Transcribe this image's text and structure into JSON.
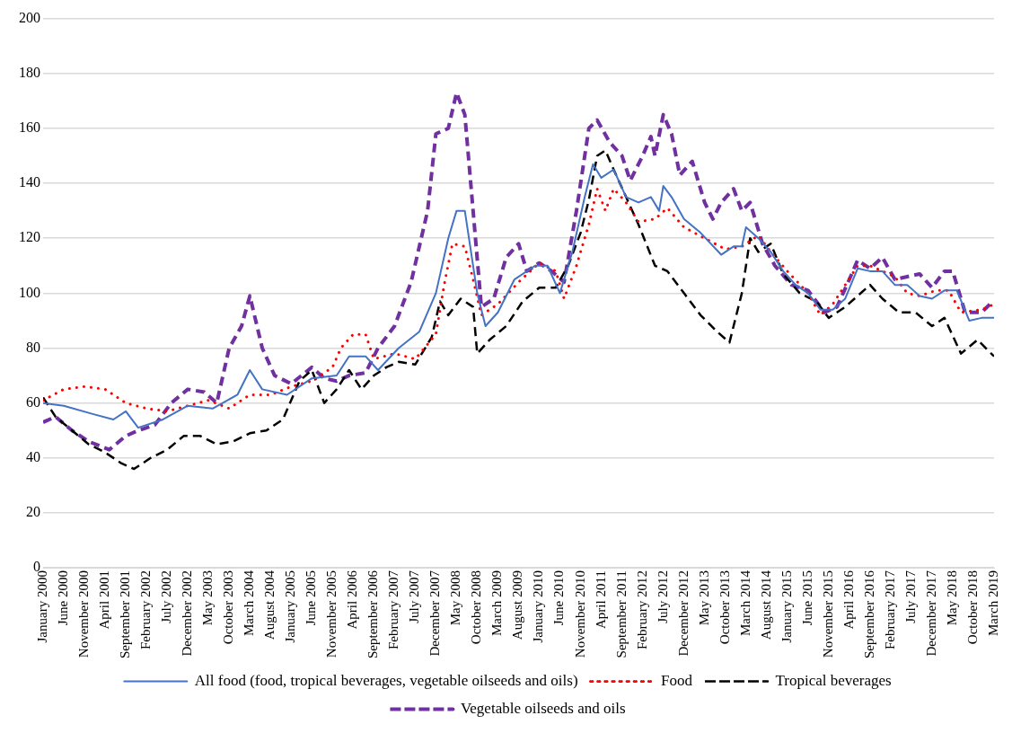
{
  "chart_data": {
    "type": "line",
    "xlim": [
      "2000-01",
      "2019-03"
    ],
    "ylim": [
      0,
      200
    ],
    "yticks": [
      0,
      20,
      40,
      60,
      80,
      100,
      120,
      140,
      160,
      180,
      200
    ],
    "grid": "y",
    "legend": "bottom",
    "marker": "none",
    "xticks": [
      {
        "value": "2000-01",
        "label": "January 2000"
      },
      {
        "value": "2000-06",
        "label": "June 2000"
      },
      {
        "value": "2000-11",
        "label": "November 2000"
      },
      {
        "value": "2001-04",
        "label": "April 2001"
      },
      {
        "value": "2001-09",
        "label": "September 2001"
      },
      {
        "value": "2002-02",
        "label": "February 2002"
      },
      {
        "value": "2002-07",
        "label": "July 2002"
      },
      {
        "value": "2002-12",
        "label": "December 2002"
      },
      {
        "value": "2003-05",
        "label": "May 2003"
      },
      {
        "value": "2003-10",
        "label": "October 2003"
      },
      {
        "value": "2004-03",
        "label": "March 2004"
      },
      {
        "value": "2004-08",
        "label": "August 2004"
      },
      {
        "value": "2005-01",
        "label": "January 2005"
      },
      {
        "value": "2005-06",
        "label": "June 2005"
      },
      {
        "value": "2005-11",
        "label": "November 2005"
      },
      {
        "value": "2006-04",
        "label": "April 2006"
      },
      {
        "value": "2006-09",
        "label": "September 2006"
      },
      {
        "value": "2007-02",
        "label": "February 2007"
      },
      {
        "value": "2007-07",
        "label": "July 2007"
      },
      {
        "value": "2007-12",
        "label": "December 2007"
      },
      {
        "value": "2008-05",
        "label": "May 2008"
      },
      {
        "value": "2008-10",
        "label": "October 2008"
      },
      {
        "value": "2009-03",
        "label": "March 2009"
      },
      {
        "value": "2009-08",
        "label": "August 2009"
      },
      {
        "value": "2010-01",
        "label": "January 2010"
      },
      {
        "value": "2010-06",
        "label": "June 2010"
      },
      {
        "value": "2010-11",
        "label": "November 2010"
      },
      {
        "value": "2011-04",
        "label": "April 2011"
      },
      {
        "value": "2011-09",
        "label": "September 2011"
      },
      {
        "value": "2012-02",
        "label": "February 2012"
      },
      {
        "value": "2012-07",
        "label": "July 2012"
      },
      {
        "value": "2012-12",
        "label": "December 2012"
      },
      {
        "value": "2013-05",
        "label": "May 2013"
      },
      {
        "value": "2013-10",
        "label": "October 2013"
      },
      {
        "value": "2014-03",
        "label": "March 2014"
      },
      {
        "value": "2014-08",
        "label": "August 2014"
      },
      {
        "value": "2015-01",
        "label": "January 2015"
      },
      {
        "value": "2015-06",
        "label": "June 2015"
      },
      {
        "value": "2015-11",
        "label": "November 2015"
      },
      {
        "value": "2016-04",
        "label": "April 2016"
      },
      {
        "value": "2016-09",
        "label": "September 2016"
      },
      {
        "value": "2017-02",
        "label": "February 2017"
      },
      {
        "value": "2017-07",
        "label": "July 2017"
      },
      {
        "value": "2017-12",
        "label": "December 2017"
      },
      {
        "value": "2018-05",
        "label": "May 2018"
      },
      {
        "value": "2018-10",
        "label": "October 2018"
      },
      {
        "value": "2019-03",
        "label": "March 2019"
      }
    ],
    "series": [
      {
        "name": "All food (food, tropical beverages, vegetable oilseeds and oils)",
        "color": "#4472c4",
        "line_style": "solid",
        "x": [
          "2000-01",
          "2000-06",
          "2001-01",
          "2001-06",
          "2001-09",
          "2001-12",
          "2002-06",
          "2002-12",
          "2003-06",
          "2003-12",
          "2004-03",
          "2004-06",
          "2004-12",
          "2005-06",
          "2005-12",
          "2006-03",
          "2006-07",
          "2006-10",
          "2007-03",
          "2007-08",
          "2007-12",
          "2008-03",
          "2008-05",
          "2008-07",
          "2008-10",
          "2008-12",
          "2009-03",
          "2009-07",
          "2009-12",
          "2010-03",
          "2010-06",
          "2010-09",
          "2010-12",
          "2011-02",
          "2011-04",
          "2011-07",
          "2011-10",
          "2012-01",
          "2012-04",
          "2012-06",
          "2012-07",
          "2012-09",
          "2012-12",
          "2013-04",
          "2013-09",
          "2013-12",
          "2014-02",
          "2014-03",
          "2014-06",
          "2014-09",
          "2014-12",
          "2015-03",
          "2015-06",
          "2015-09",
          "2015-12",
          "2016-03",
          "2016-06",
          "2016-09",
          "2016-12",
          "2017-03",
          "2017-06",
          "2017-09",
          "2017-12",
          "2018-03",
          "2018-06",
          "2018-09",
          "2018-12",
          "2019-03"
        ],
        "values": [
          60,
          59,
          56,
          54,
          57,
          51,
          54,
          59,
          58,
          63,
          72,
          65,
          63,
          69,
          70,
          77,
          77,
          72,
          80,
          86,
          100,
          120,
          130,
          130,
          100,
          88,
          93,
          105,
          110,
          110,
          100,
          115,
          135,
          147,
          142,
          145,
          135,
          133,
          135,
          130,
          139,
          135,
          127,
          122,
          114,
          117,
          117,
          124,
          120,
          115,
          108,
          103,
          100,
          94,
          94,
          98,
          109,
          108,
          108,
          103,
          103,
          99,
          98,
          101,
          101,
          90,
          91,
          91
        ]
      },
      {
        "name": "Food",
        "color": "#ff0000",
        "line_style": "dotted",
        "x": [
          "2000-01",
          "2000-06",
          "2000-11",
          "2001-04",
          "2001-09",
          "2002-02",
          "2002-07",
          "2002-12",
          "2003-05",
          "2003-10",
          "2004-03",
          "2004-08",
          "2005-01",
          "2005-06",
          "2005-11",
          "2006-01",
          "2006-04",
          "2006-07",
          "2006-09",
          "2007-02",
          "2007-07",
          "2007-12",
          "2008-02",
          "2008-04",
          "2008-07",
          "2008-09",
          "2008-11",
          "2009-03",
          "2009-08",
          "2010-01",
          "2010-05",
          "2010-07",
          "2010-10",
          "2011-01",
          "2011-03",
          "2011-05",
          "2011-07",
          "2011-10",
          "2012-01",
          "2012-05",
          "2012-08",
          "2012-12",
          "2013-05",
          "2013-10",
          "2014-02",
          "2014-06",
          "2014-09",
          "2015-01",
          "2015-06",
          "2015-09",
          "2015-12",
          "2016-03",
          "2016-06",
          "2016-09",
          "2016-12",
          "2017-03",
          "2017-06",
          "2017-09",
          "2018-01",
          "2018-04",
          "2018-07",
          "2018-12",
          "2019-03"
        ],
        "values": [
          61,
          65,
          66,
          65,
          60,
          58,
          57,
          59,
          61,
          58,
          63,
          63,
          66,
          68,
          73,
          80,
          85,
          85,
          76,
          78,
          76,
          85,
          103,
          118,
          117,
          105,
          92,
          96,
          104,
          111,
          108,
          98,
          110,
          125,
          138,
          130,
          138,
          133,
          126,
          127,
          131,
          124,
          120,
          116,
          117,
          121,
          115,
          108,
          100,
          92,
          96,
          103,
          110,
          110,
          108,
          106,
          100,
          99,
          101,
          101,
          93,
          94,
          96
        ]
      },
      {
        "name": "Tropical beverages",
        "color": "#000000",
        "line_style": "dashed",
        "x": [
          "2000-01",
          "2000-04",
          "2000-08",
          "2000-12",
          "2001-04",
          "2001-08",
          "2001-11",
          "2002-03",
          "2002-07",
          "2002-11",
          "2003-03",
          "2003-07",
          "2003-11",
          "2004-03",
          "2004-07",
          "2004-11",
          "2005-03",
          "2005-06",
          "2005-09",
          "2005-12",
          "2006-03",
          "2006-06",
          "2006-09",
          "2006-12",
          "2007-03",
          "2007-07",
          "2007-11",
          "2008-01",
          "2008-03",
          "2008-06",
          "2008-09",
          "2008-10",
          "2009-01",
          "2009-05",
          "2009-09",
          "2010-01",
          "2010-05",
          "2010-08",
          "2010-11",
          "2011-01",
          "2011-03",
          "2011-05",
          "2011-07",
          "2011-10",
          "2012-01",
          "2012-05",
          "2012-08",
          "2012-12",
          "2013-04",
          "2013-08",
          "2013-11",
          "2014-02",
          "2014-04",
          "2014-06",
          "2014-09",
          "2014-12",
          "2015-04",
          "2015-08",
          "2015-11",
          "2016-03",
          "2016-06",
          "2016-09",
          "2016-12",
          "2017-04",
          "2017-08",
          "2017-12",
          "2018-03",
          "2018-07",
          "2018-11",
          "2019-03"
        ],
        "values": [
          62,
          55,
          50,
          45,
          42,
          38,
          36,
          40,
          43,
          48,
          48,
          45,
          46,
          49,
          50,
          54,
          68,
          72,
          60,
          65,
          72,
          65,
          70,
          73,
          75,
          74,
          84,
          97,
          92,
          98,
          95,
          78,
          83,
          88,
          97,
          102,
          102,
          110,
          122,
          134,
          150,
          152,
          145,
          135,
          125,
          110,
          108,
          100,
          92,
          86,
          82,
          100,
          120,
          115,
          118,
          107,
          100,
          97,
          91,
          95,
          99,
          103,
          98,
          93,
          93,
          88,
          91,
          78,
          83,
          77
        ]
      },
      {
        "name": "Vegetable oilseeds and oils",
        "color": "#7030a0",
        "line_style": "dashed",
        "x": [
          "2000-01",
          "2000-04",
          "2000-08",
          "2000-12",
          "2001-05",
          "2001-09",
          "2001-12",
          "2002-04",
          "2002-08",
          "2002-12",
          "2003-04",
          "2003-07",
          "2003-10",
          "2004-01",
          "2004-03",
          "2004-06",
          "2004-09",
          "2005-01",
          "2005-06",
          "2005-09",
          "2005-12",
          "2006-03",
          "2006-07",
          "2006-10",
          "2007-02",
          "2007-06",
          "2007-10",
          "2007-12",
          "2008-03",
          "2008-05",
          "2008-07",
          "2008-09",
          "2008-11",
          "2009-02",
          "2009-05",
          "2009-08",
          "2009-10",
          "2010-01",
          "2010-04",
          "2010-07",
          "2010-10",
          "2011-01",
          "2011-03",
          "2011-06",
          "2011-09",
          "2011-11",
          "2012-02",
          "2012-04",
          "2012-05",
          "2012-07",
          "2012-09",
          "2012-11",
          "2013-02",
          "2013-05",
          "2013-07",
          "2013-09",
          "2013-12",
          "2014-02",
          "2014-04",
          "2014-07",
          "2014-10",
          "2015-02",
          "2015-06",
          "2015-10",
          "2016-01",
          "2016-04",
          "2016-06",
          "2016-09",
          "2016-12",
          "2017-03",
          "2017-06",
          "2017-09",
          "2017-12",
          "2018-03",
          "2018-05",
          "2018-08",
          "2018-12",
          "2019-02"
        ],
        "values": [
          53,
          55,
          50,
          46,
          43,
          48,
          50,
          52,
          60,
          65,
          64,
          60,
          80,
          88,
          99,
          80,
          70,
          67,
          73,
          69,
          68,
          70,
          71,
          80,
          88,
          104,
          130,
          158,
          160,
          173,
          165,
          130,
          95,
          98,
          113,
          118,
          108,
          111,
          108,
          104,
          130,
          160,
          163,
          155,
          150,
          141,
          150,
          157,
          150,
          165,
          158,
          143,
          148,
          133,
          127,
          133,
          138,
          130,
          133,
          118,
          110,
          103,
          101,
          93,
          95,
          105,
          112,
          109,
          113,
          105,
          106,
          107,
          102,
          108,
          108,
          93,
          93,
          96
        ]
      }
    ]
  }
}
